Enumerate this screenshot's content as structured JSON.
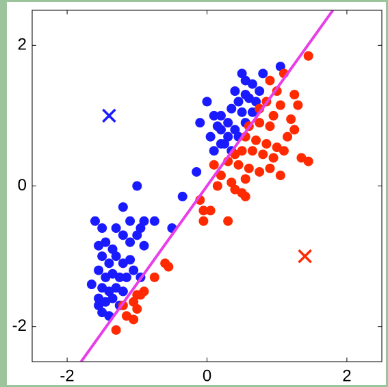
{
  "chart_data": {
    "type": "scatter",
    "xlim": [
      -2.5,
      2.5
    ],
    "ylim": [
      -2.5,
      2.5
    ],
    "xticks": [
      -2,
      0,
      2
    ],
    "yticks": [
      -2,
      0,
      2
    ],
    "series": [
      {
        "color": "#1a1aff",
        "marker": "circle",
        "x": [
          -1.6,
          -1.5,
          -1.2,
          -1.0,
          -1.1,
          -0.9,
          -0.95,
          -0.75,
          -0.5,
          -1.3,
          -1.45,
          -1.35,
          -1.55,
          -1.2,
          -1.1,
          -1.0,
          -0.9,
          -1.5,
          -1.4,
          -1.3,
          -1.2,
          -1.1,
          -1.55,
          -1.45,
          -1.35,
          -1.25,
          -1.15,
          -1.05,
          -1.65,
          -1.5,
          -1.4,
          -1.3,
          -1.2,
          -1.55,
          -1.45,
          -1.35,
          -1.25,
          -1.5,
          -1.4,
          -1.55,
          -0.95,
          -0.35,
          -0.1,
          0.0,
          0.1,
          0.2,
          0.05,
          -0.15,
          0.1,
          0.25,
          0.3,
          0.35,
          0.4,
          0.5,
          0.55,
          0.65,
          0.8,
          0.55,
          0.45,
          0.5,
          0.6,
          0.7,
          0.55,
          0.4,
          0.3,
          0.2,
          0.45,
          0.35,
          0.65,
          0.75,
          1.05,
          0.2,
          0.15
        ],
        "values": [
          -0.5,
          -0.6,
          -0.3,
          0.0,
          -0.5,
          -0.5,
          -0.6,
          -0.5,
          -0.6,
          -0.6,
          -0.8,
          -0.9,
          -0.85,
          -0.7,
          -0.8,
          -0.7,
          -0.85,
          -1.0,
          -1.1,
          -1.0,
          -1.1,
          -1.05,
          -1.2,
          -1.3,
          -1.25,
          -1.3,
          -1.3,
          -1.2,
          -1.4,
          -1.45,
          -1.5,
          -1.45,
          -1.5,
          -1.6,
          -1.65,
          -1.6,
          -1.7,
          -1.8,
          -1.85,
          -1.7,
          -1.3,
          -0.15,
          0.9,
          1.2,
          1.0,
          0.8,
          0.7,
          0.2,
          0.5,
          0.6,
          0.9,
          1.1,
          1.35,
          1.6,
          1.5,
          1.45,
          1.6,
          1.3,
          1.2,
          1.05,
          1.25,
          1.2,
          0.9,
          0.8,
          0.7,
          0.6,
          0.7,
          0.5,
          1.05,
          1.35,
          1.7,
          1.0,
          0.85
        ]
      },
      {
        "color": "#ff2a00",
        "marker": "circle",
        "x": [
          1.45,
          1.1,
          0.9,
          1.0,
          1.25,
          1.3,
          0.85,
          0.75,
          1.05,
          0.95,
          1.2,
          1.25,
          1.15,
          0.9,
          0.75,
          0.6,
          0.55,
          0.7,
          0.85,
          1.0,
          1.1,
          1.35,
          1.45,
          0.95,
          0.8,
          0.65,
          0.5,
          0.4,
          0.3,
          0.45,
          0.6,
          0.75,
          0.9,
          1.05,
          0.55,
          0.35,
          0.2,
          0.1,
          0.15,
          0.4,
          0.5,
          0.55,
          0.3,
          -0.1,
          -0.05,
          0.05,
          -0.05,
          -0.6,
          -0.55,
          -0.75,
          -0.9,
          -1.0,
          -1.05,
          -1.2,
          -1.15,
          -1.05,
          -1.0,
          -1.3,
          -0.95
        ],
        "values": [
          1.85,
          1.6,
          1.5,
          1.35,
          1.3,
          1.15,
          1.2,
          1.1,
          1.15,
          1.0,
          0.95,
          0.8,
          0.7,
          0.85,
          0.9,
          0.85,
          0.7,
          0.65,
          0.6,
          0.55,
          0.5,
          0.4,
          0.35,
          0.4,
          0.45,
          0.5,
          0.5,
          0.45,
          0.35,
          0.3,
          0.25,
          0.2,
          0.25,
          0.15,
          0.1,
          0.05,
          0.15,
          0.3,
          0.0,
          -0.05,
          -0.1,
          -0.15,
          -0.5,
          -0.2,
          -0.35,
          -0.35,
          -0.5,
          -1.1,
          -1.15,
          -1.3,
          -1.5,
          -1.55,
          -1.65,
          -1.7,
          -1.85,
          -1.9,
          -1.75,
          -2.05,
          -1.55
        ]
      },
      {
        "color": "#1a1aff",
        "marker": "x",
        "x": [
          -1.4
        ],
        "values": [
          1.0
        ]
      },
      {
        "color": "#ff2a00",
        "marker": "x",
        "x": [
          1.4
        ],
        "values": [
          -1.0
        ]
      },
      {
        "color": "#e83ee8",
        "marker": "line",
        "x": [
          -1.8,
          1.8
        ],
        "values": [
          -2.5,
          2.5
        ]
      }
    ]
  }
}
